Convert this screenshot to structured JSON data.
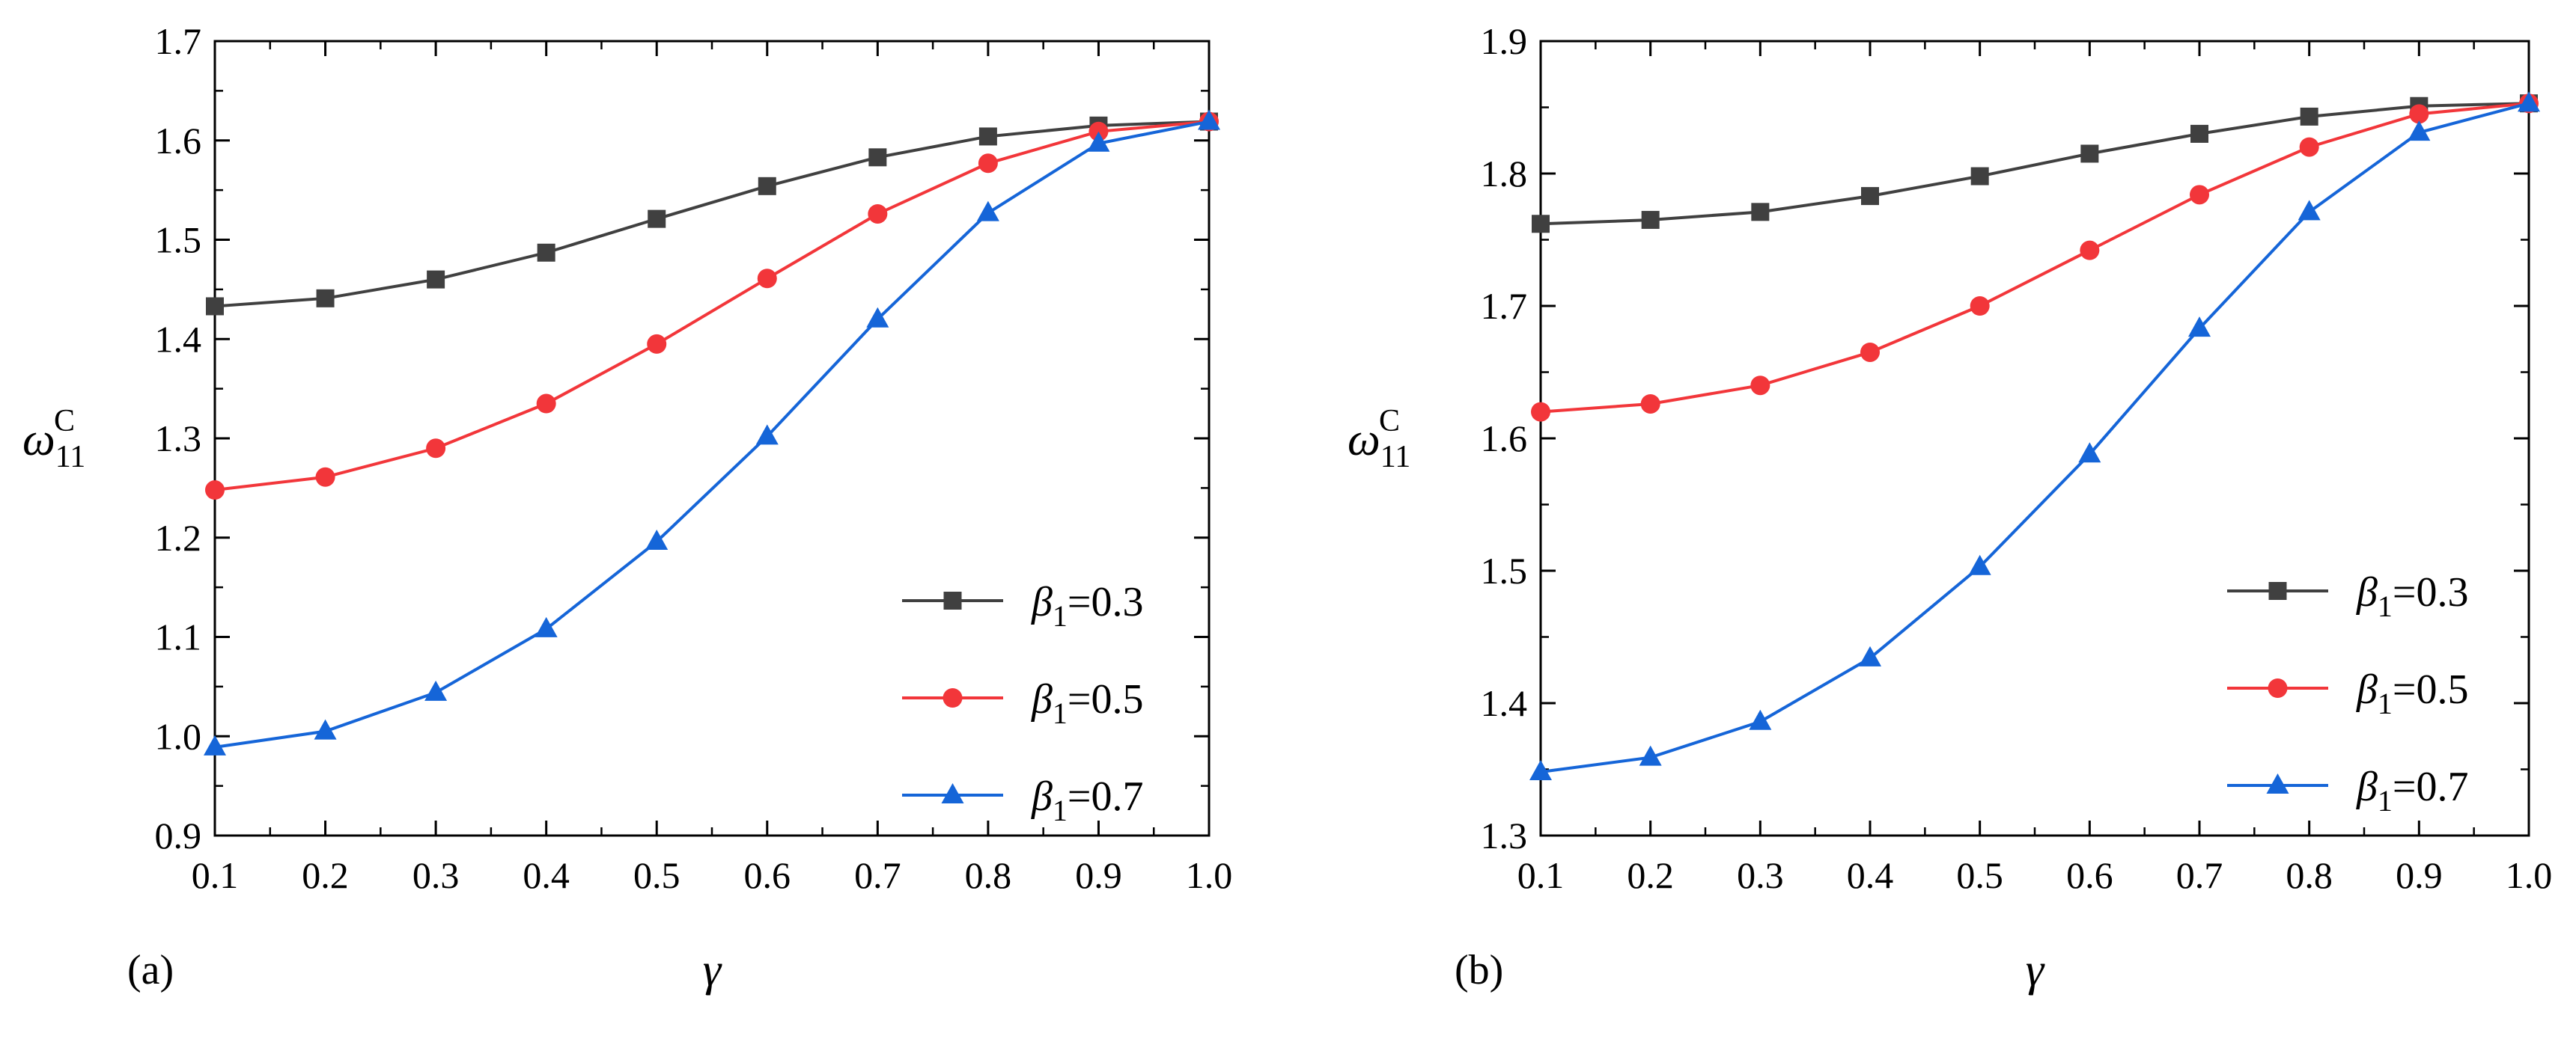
{
  "colors": {
    "series_0": "#404040",
    "series_1": "#f2363a",
    "series_2": "#1565d8"
  },
  "chart_data": [
    {
      "type": "line",
      "panel_label": "(a)",
      "xlabel": "γ",
      "ylabel": {
        "symbol": "ω",
        "subscript": "11",
        "superscript": "C"
      },
      "xlim": [
        0.1,
        1.0
      ],
      "ylim": [
        0.9,
        1.7
      ],
      "xticks": [
        "0.1",
        "0.2",
        "0.3",
        "0.4",
        "0.5",
        "0.6",
        "0.7",
        "0.8",
        "0.9",
        "1.0"
      ],
      "yticks": [
        "0.9",
        "1.0",
        "1.1",
        "1.2",
        "1.3",
        "1.4",
        "1.5",
        "1.6",
        "1.7"
      ],
      "legend_position": "lower-right",
      "x": [
        0.1,
        0.2,
        0.3,
        0.4,
        0.5,
        0.6,
        0.7,
        0.8,
        0.9,
        1.0
      ],
      "series": [
        {
          "name": "β1=0.3",
          "symbol": "β",
          "subscript": "1",
          "value_text": "=0.3",
          "marker": "square",
          "values": [
            1.433,
            1.441,
            1.46,
            1.487,
            1.521,
            1.554,
            1.583,
            1.604,
            1.615,
            1.619
          ]
        },
        {
          "name": "β1=0.5",
          "symbol": "β",
          "subscript": "1",
          "value_text": "=0.5",
          "marker": "circle",
          "values": [
            1.248,
            1.261,
            1.29,
            1.335,
            1.395,
            1.461,
            1.526,
            1.577,
            1.609,
            1.619
          ]
        },
        {
          "name": "β1=0.7",
          "symbol": "β",
          "subscript": "1",
          "value_text": "=0.7",
          "marker": "triangle",
          "values": [
            0.989,
            1.005,
            1.044,
            1.108,
            1.196,
            1.302,
            1.42,
            1.527,
            1.597,
            1.619
          ]
        }
      ]
    },
    {
      "type": "line",
      "panel_label": "(b)",
      "xlabel": "γ",
      "ylabel": {
        "symbol": "ω",
        "subscript": "11",
        "superscript": "C"
      },
      "xlim": [
        0.1,
        1.0
      ],
      "ylim": [
        1.3,
        1.9
      ],
      "xticks": [
        "0.1",
        "0.2",
        "0.3",
        "0.4",
        "0.5",
        "0.6",
        "0.7",
        "0.8",
        "0.9",
        "1.0"
      ],
      "yticks": [
        "1.3",
        "1.4",
        "1.5",
        "1.6",
        "1.7",
        "1.8",
        "1.9"
      ],
      "legend_position": "lower-right",
      "x": [
        0.1,
        0.2,
        0.3,
        0.4,
        0.5,
        0.6,
        0.7,
        0.8,
        0.9,
        1.0
      ],
      "series": [
        {
          "name": "β1=0.3",
          "symbol": "β",
          "subscript": "1",
          "value_text": "=0.3",
          "marker": "square",
          "values": [
            1.762,
            1.765,
            1.771,
            1.783,
            1.798,
            1.815,
            1.83,
            1.843,
            1.851,
            1.853
          ]
        },
        {
          "name": "β1=0.5",
          "symbol": "β",
          "subscript": "1",
          "value_text": "=0.5",
          "marker": "circle",
          "values": [
            1.62,
            1.626,
            1.64,
            1.665,
            1.7,
            1.742,
            1.784,
            1.82,
            1.845,
            1.853
          ]
        },
        {
          "name": "β1=0.7",
          "symbol": "β",
          "subscript": "1",
          "value_text": "=0.7",
          "marker": "triangle",
          "values": [
            1.348,
            1.359,
            1.386,
            1.434,
            1.503,
            1.588,
            1.683,
            1.771,
            1.831,
            1.853
          ]
        }
      ]
    }
  ]
}
